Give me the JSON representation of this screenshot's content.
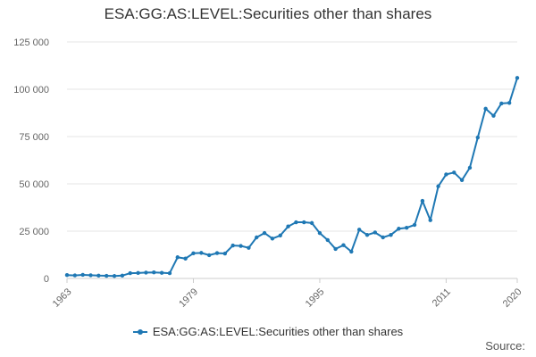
{
  "colors": {
    "series": "#1f78b4",
    "grid": "#e6e6e6",
    "axis": "#cccccc",
    "text": "#666666"
  },
  "source_label": "Source:",
  "chart_data": {
    "type": "line",
    "title": "ESA:GG:AS:LEVEL:Securities other than shares",
    "xlabel": "",
    "ylabel": "",
    "xlim": [
      1963,
      2020
    ],
    "ylim": [
      0,
      125000
    ],
    "y_ticks": [
      0,
      25000,
      50000,
      75000,
      100000,
      125000
    ],
    "y_tick_labels": [
      "0",
      "25 000",
      "50 000",
      "75 000",
      "100 000",
      "125 000"
    ],
    "x_ticks": [
      1963,
      1979,
      1995,
      2011,
      2020
    ],
    "x_tick_labels": [
      "1963",
      "1979",
      "1995",
      "2011",
      "2020"
    ],
    "grid": true,
    "legend_position": "bottom",
    "series": [
      {
        "name": "ESA:GG:AS:LEVEL:Securities other than shares",
        "x": [
          1963,
          1964,
          1965,
          1966,
          1967,
          1968,
          1969,
          1970,
          1971,
          1972,
          1973,
          1974,
          1975,
          1976,
          1977,
          1978,
          1979,
          1980,
          1981,
          1982,
          1983,
          1984,
          1985,
          1986,
          1987,
          1988,
          1989,
          1990,
          1991,
          1992,
          1993,
          1994,
          1995,
          1996,
          1997,
          1998,
          1999,
          2000,
          2001,
          2002,
          2003,
          2004,
          2005,
          2006,
          2007,
          2008,
          2009,
          2010,
          2011,
          2012,
          2013,
          2014,
          2015,
          2016,
          2017,
          2018,
          2019,
          2020
        ],
        "y": [
          1800,
          1600,
          1900,
          1700,
          1500,
          1400,
          1300,
          1500,
          2800,
          2900,
          3100,
          3200,
          3000,
          2800,
          11200,
          10500,
          13300,
          13500,
          12300,
          13400,
          13200,
          17400,
          17200,
          16200,
          21700,
          24000,
          21100,
          22700,
          27500,
          29700,
          29700,
          29300,
          24000,
          20300,
          15600,
          17600,
          14200,
          25800,
          23000,
          24300,
          21700,
          23000,
          26300,
          26800,
          28300,
          41000,
          30800,
          48700,
          55000,
          56000,
          52000,
          58500,
          74500,
          89700,
          86000,
          92500,
          92800,
          106000
        ]
      }
    ]
  }
}
